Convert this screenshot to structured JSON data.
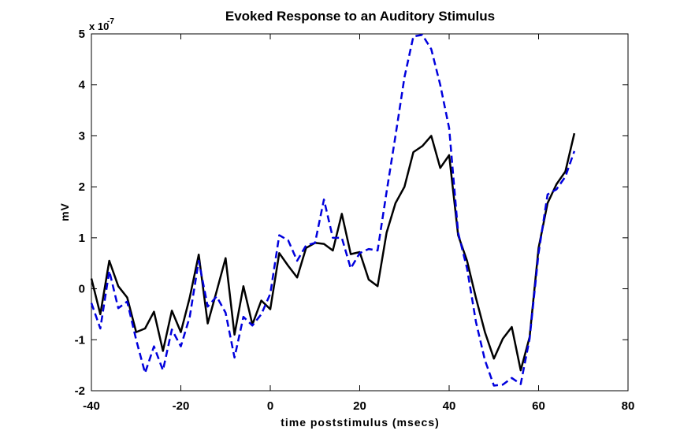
{
  "chart_data": {
    "type": "line",
    "title": "Evoked Response to an Auditory Stimulus",
    "xlabel": "time poststimulus (msecs)",
    "ylabel": "mV",
    "y_exponent_base": "x 10",
    "y_exponent_power": "-7",
    "xlim": [
      -40,
      80
    ],
    "ylim": [
      -2,
      5
    ],
    "x_ticks": [
      -40,
      -20,
      0,
      20,
      40,
      60,
      80
    ],
    "x_tick_labels": [
      "-40",
      "-20",
      "0",
      "20",
      "40",
      "60",
      "80"
    ],
    "y_ticks": [
      -2,
      -1,
      0,
      1,
      2,
      3,
      4,
      5
    ],
    "y_tick_labels": [
      "-2",
      "-1",
      "0",
      "1",
      "2",
      "3",
      "4",
      "5"
    ],
    "grid": false,
    "series": [
      {
        "style": "solid",
        "color": "#000000",
        "points": [
          [
            -40,
            0.2
          ],
          [
            -38,
            -0.5
          ],
          [
            -36,
            0.55
          ],
          [
            -34,
            0.05
          ],
          [
            -32,
            -0.17
          ],
          [
            -30,
            -0.85
          ],
          [
            -28,
            -0.78
          ],
          [
            -26,
            -0.45
          ],
          [
            -24,
            -1.22
          ],
          [
            -22,
            -0.43
          ],
          [
            -20,
            -0.85
          ],
          [
            -18,
            -0.17
          ],
          [
            -16,
            0.67
          ],
          [
            -14,
            -0.68
          ],
          [
            -12,
            -0.05
          ],
          [
            -10,
            0.6
          ],
          [
            -8,
            -0.9
          ],
          [
            -6,
            0.05
          ],
          [
            -4,
            -0.7
          ],
          [
            -2,
            -0.23
          ],
          [
            0,
            -0.4
          ],
          [
            2,
            0.7
          ],
          [
            4,
            0.45
          ],
          [
            6,
            0.22
          ],
          [
            8,
            0.8
          ],
          [
            10,
            0.9
          ],
          [
            12,
            0.88
          ],
          [
            14,
            0.75
          ],
          [
            16,
            1.47
          ],
          [
            18,
            0.68
          ],
          [
            20,
            0.72
          ],
          [
            22,
            0.18
          ],
          [
            24,
            0.05
          ],
          [
            26,
            1.1
          ],
          [
            28,
            1.68
          ],
          [
            30,
            2.0
          ],
          [
            32,
            2.68
          ],
          [
            34,
            2.8
          ],
          [
            36,
            3.0
          ],
          [
            38,
            2.37
          ],
          [
            40,
            2.62
          ],
          [
            42,
            1.05
          ],
          [
            44,
            0.55
          ],
          [
            46,
            -0.18
          ],
          [
            48,
            -0.85
          ],
          [
            50,
            -1.37
          ],
          [
            52,
            -0.98
          ],
          [
            54,
            -0.75
          ],
          [
            56,
            -1.6
          ],
          [
            58,
            -0.95
          ],
          [
            60,
            0.8
          ],
          [
            62,
            1.68
          ],
          [
            64,
            2.05
          ],
          [
            66,
            2.3
          ],
          [
            68,
            3.05
          ]
        ]
      },
      {
        "style": "dashed",
        "color": "#0000dd",
        "points": [
          [
            -40,
            -0.28
          ],
          [
            -38,
            -0.78
          ],
          [
            -36,
            0.35
          ],
          [
            -34,
            -0.38
          ],
          [
            -32,
            -0.25
          ],
          [
            -30,
            -1.0
          ],
          [
            -28,
            -1.65
          ],
          [
            -26,
            -1.13
          ],
          [
            -24,
            -1.6
          ],
          [
            -22,
            -0.8
          ],
          [
            -20,
            -1.13
          ],
          [
            -18,
            -0.55
          ],
          [
            -16,
            0.55
          ],
          [
            -14,
            -0.35
          ],
          [
            -12,
            -0.15
          ],
          [
            -10,
            -0.47
          ],
          [
            -8,
            -1.35
          ],
          [
            -6,
            -0.55
          ],
          [
            -4,
            -0.72
          ],
          [
            -2,
            -0.5
          ],
          [
            0,
            -0.1
          ],
          [
            2,
            1.05
          ],
          [
            4,
            0.95
          ],
          [
            6,
            0.55
          ],
          [
            8,
            0.85
          ],
          [
            10,
            0.9
          ],
          [
            12,
            1.75
          ],
          [
            14,
            1.0
          ],
          [
            16,
            1.0
          ],
          [
            18,
            0.4
          ],
          [
            20,
            0.7
          ],
          [
            22,
            0.78
          ],
          [
            24,
            0.75
          ],
          [
            26,
            1.9
          ],
          [
            28,
            3.0
          ],
          [
            30,
            4.15
          ],
          [
            32,
            4.95
          ],
          [
            34,
            4.98
          ],
          [
            36,
            4.7
          ],
          [
            38,
            4.0
          ],
          [
            40,
            3.15
          ],
          [
            42,
            1.1
          ],
          [
            44,
            0.4
          ],
          [
            46,
            -0.65
          ],
          [
            48,
            -1.4
          ],
          [
            50,
            -1.9
          ],
          [
            52,
            -1.88
          ],
          [
            54,
            -1.75
          ],
          [
            56,
            -1.87
          ],
          [
            58,
            -0.98
          ],
          [
            60,
            0.7
          ],
          [
            62,
            1.85
          ],
          [
            64,
            1.95
          ],
          [
            66,
            2.2
          ],
          [
            68,
            2.7
          ]
        ]
      }
    ]
  }
}
